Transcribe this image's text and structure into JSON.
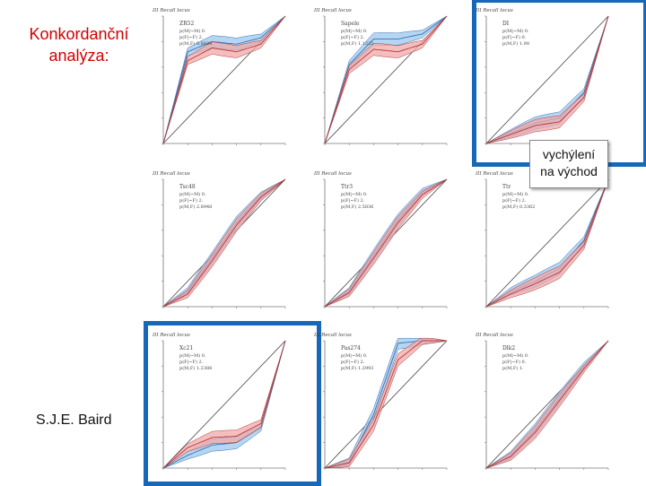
{
  "slide": {
    "title_line1": "Konkordanční",
    "title_line2": "analýza:",
    "author": "S.J.E. Baird",
    "callout_line1": "vychýlení",
    "callout_line2": "na východ"
  },
  "colors": {
    "frame": "#1768b8",
    "title": "#d10000",
    "blue_band": "#9cc8ee",
    "red_band": "#f2a8a8"
  },
  "panels": [
    {
      "header": "III Recall locus",
      "label": "ZR52",
      "stats": [
        "p(M|~M) 0.",
        "p(F|~F) 2.",
        "p(M,F) 0.8824"
      ],
      "chart_data": {
        "type": "line",
        "x": [
          0,
          0.2,
          0.4,
          0.6,
          0.8,
          1
        ],
        "series": [
          {
            "values": [
              0,
              0.72,
              0.8,
              0.78,
              0.83,
              1
            ]
          },
          {
            "values": [
              0,
              0.65,
              0.75,
              0.72,
              0.78,
              1
            ]
          }
        ]
      }
    },
    {
      "header": "III Recall locus",
      "label": "Sapele",
      "stats": [
        "p(M|~M) 0.",
        "p(F|~F) 2.",
        "p(M,F) 1.1232"
      ],
      "chart_data": {
        "type": "line",
        "x": [
          0,
          0.2,
          0.4,
          0.6,
          0.8,
          1
        ],
        "series": [
          {
            "values": [
              0,
              0.62,
              0.82,
              0.82,
              0.86,
              1
            ]
          },
          {
            "values": [
              0,
              0.58,
              0.74,
              0.72,
              0.78,
              1
            ]
          }
        ]
      }
    },
    {
      "header": "III Recall locus",
      "label": "DI",
      "stats": [
        "p(M|~M) 0.",
        "p(F|~F) 0.",
        "p(M,F) 1.98"
      ],
      "chart_data": {
        "type": "line",
        "x": [
          0,
          0.2,
          0.4,
          0.6,
          0.8,
          1
        ],
        "series": [
          {
            "values": [
              0,
              0.08,
              0.16,
              0.2,
              0.4,
              1
            ]
          },
          {
            "values": [
              0,
              0.07,
              0.14,
              0.17,
              0.36,
              1
            ]
          }
        ]
      }
    },
    {
      "header": "III Recall locus",
      "label": "Tsc48",
      "stats": [
        "p(M|~M) 0.",
        "p(F|~F) 2.",
        "p(M,F) 2.8948"
      ],
      "chart_data": {
        "type": "line",
        "x": [
          0,
          0.2,
          0.4,
          0.6,
          0.8,
          1
        ],
        "series": [
          {
            "values": [
              0,
              0.12,
              0.38,
              0.66,
              0.87,
              1
            ]
          },
          {
            "values": [
              0,
              0.1,
              0.36,
              0.64,
              0.86,
              1
            ]
          }
        ]
      }
    },
    {
      "header": "III Recall locus",
      "label": "Ttr3",
      "stats": [
        "p(M|~M) 0.",
        "p(F|~F) 2.",
        "p(M,F) 2.5836"
      ],
      "chart_data": {
        "type": "line",
        "x": [
          0,
          0.2,
          0.4,
          0.6,
          0.8,
          1
        ],
        "series": [
          {
            "values": [
              0,
              0.12,
              0.4,
              0.68,
              0.9,
              1
            ]
          },
          {
            "values": [
              0,
              0.11,
              0.38,
              0.66,
              0.88,
              1
            ]
          }
        ]
      }
    },
    {
      "header": "III Recall locus",
      "label": "Ttr",
      "stats": [
        "p(M|~M) 0.",
        "p(F|~F) 2.",
        "p(M,F) 0.3362"
      ],
      "chart_data": {
        "type": "line",
        "x": [
          0,
          0.2,
          0.4,
          0.6,
          0.8,
          1
        ],
        "series": [
          {
            "values": [
              0,
              0.12,
              0.2,
              0.3,
              0.52,
              1
            ]
          },
          {
            "values": [
              0,
              0.1,
              0.18,
              0.27,
              0.48,
              1
            ]
          }
        ]
      }
    },
    {
      "header": "III Recall locus",
      "label": "Xc21",
      "stats": [
        "p(M|~M) 0.",
        "p(F|~F) 2.",
        "p(M,F) 1.2388"
      ],
      "chart_data": {
        "type": "line",
        "x": [
          0,
          0.2,
          0.4,
          0.6,
          0.8,
          1
        ],
        "series": [
          {
            "values": [
              0,
              0.1,
              0.18,
              0.2,
              0.32,
              1
            ]
          },
          {
            "values": [
              0,
              0.16,
              0.24,
              0.25,
              0.35,
              1
            ]
          }
        ]
      }
    },
    {
      "header": "III Recall locus",
      "label": "Pas274",
      "stats": [
        "p(M|~M) 0.",
        "p(F|~F) 2.",
        "p(M,F) 1.2993"
      ],
      "chart_data": {
        "type": "line",
        "x": [
          0,
          0.2,
          0.4,
          0.6,
          0.8,
          1
        ],
        "series": [
          {
            "values": [
              0,
              0.05,
              0.42,
              0.98,
              1,
              1
            ]
          },
          {
            "values": [
              0,
              0.04,
              0.34,
              0.85,
              1,
              1
            ]
          }
        ]
      }
    },
    {
      "header": "III Recall locus",
      "label": "Dlk2",
      "stats": [
        "p(M|~M) 0.",
        "p(F|~F) 0.",
        "p(M,F) 1."
      ],
      "chart_data": {
        "type": "line",
        "x": [
          0,
          0.2,
          0.4,
          0.6,
          0.8,
          1
        ],
        "series": [
          {
            "values": [
              0,
              0.1,
              0.3,
              0.55,
              0.8,
              1
            ]
          },
          {
            "values": [
              0,
              0.09,
              0.28,
              0.53,
              0.78,
              1
            ]
          }
        ]
      }
    }
  ]
}
